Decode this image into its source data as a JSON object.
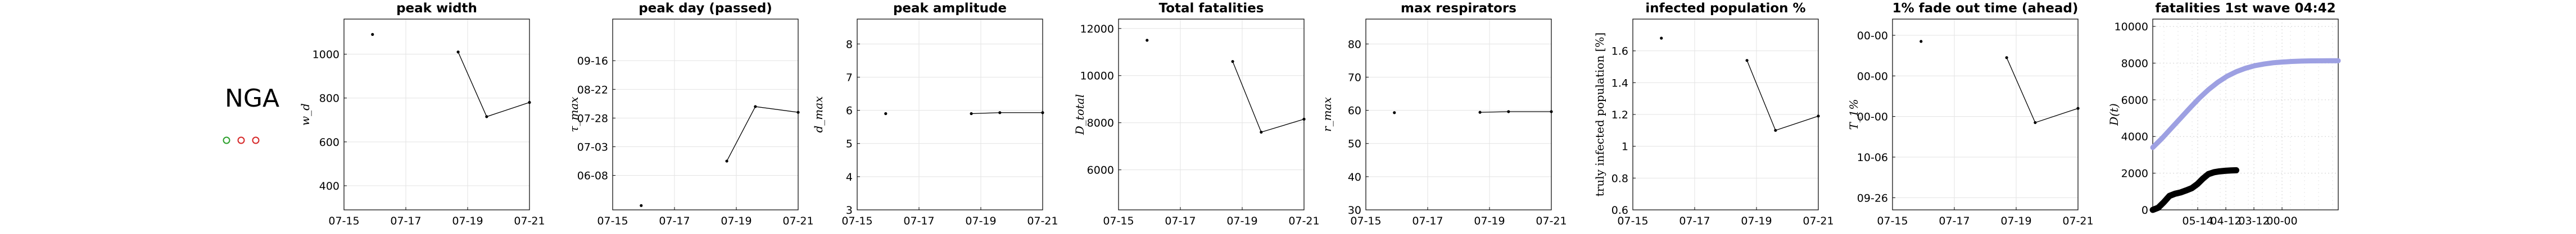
{
  "country": {
    "label": "NGA",
    "indicators": [
      {
        "color": "#2ca02c"
      },
      {
        "color": "#d62728"
      },
      {
        "color": "#d62728"
      }
    ]
  },
  "chart_data": [
    {
      "type": "line",
      "title": "peak width",
      "ylabel": "w_d",
      "xticks": [
        "07-15",
        "07-17",
        "07-19",
        "07-21"
      ],
      "xlim": [
        0,
        6.5
      ],
      "yticks": [
        "400",
        "600",
        "800",
        "1000"
      ],
      "ylim": [
        290,
        1160
      ],
      "grid": true,
      "points": [
        [
          1,
          1090
        ],
        [
          4,
          1010
        ],
        [
          5,
          715
        ],
        [
          6.5,
          780
        ]
      ],
      "line_from": 1
    },
    {
      "type": "line",
      "title": "peak day (passed)",
      "ylabel": "τ_max",
      "xticks": [
        "07-15",
        "07-17",
        "07-19",
        "07-21"
      ],
      "xlim": [
        0,
        6.5
      ],
      "yticks": [
        "06-08",
        "07-03",
        "07-28",
        "08-22",
        "09-16"
      ],
      "ylim": [
        -1.2,
        5.45
      ],
      "grid": true,
      "points": [
        [
          1,
          -1.05
        ],
        [
          4,
          0.5
        ],
        [
          5,
          2.4
        ],
        [
          6.5,
          2.2
        ]
      ],
      "line_from": 1
    },
    {
      "type": "line",
      "title": "peak amplitude",
      "ylabel": "d_max",
      "xticks": [
        "07-15",
        "07-17",
        "07-19",
        "07-21"
      ],
      "xlim": [
        0,
        6.5
      ],
      "yticks": [
        "3",
        "4",
        "5",
        "6",
        "7",
        "8"
      ],
      "ylim": [
        3,
        8.75
      ],
      "grid": true,
      "points": [
        [
          1,
          5.9
        ],
        [
          4,
          5.9
        ],
        [
          5,
          5.93
        ],
        [
          6.5,
          5.93
        ]
      ],
      "line_from": 1
    },
    {
      "type": "line",
      "title": "Total fatalities",
      "ylabel": "D_total",
      "xticks": [
        "07-15",
        "07-17",
        "07-19",
        "07-21"
      ],
      "xlim": [
        0,
        6.5
      ],
      "yticks": [
        "6000",
        "8000",
        "10000",
        "12000"
      ],
      "ylim": [
        4300,
        12400
      ],
      "grid": true,
      "points": [
        [
          1,
          11500
        ],
        [
          4,
          10600
        ],
        [
          5,
          7600
        ],
        [
          6.5,
          8150
        ]
      ],
      "line_from": 1
    },
    {
      "type": "line",
      "title": "max respirators",
      "ylabel": "r_max",
      "xticks": [
        "07-15",
        "07-17",
        "07-19",
        "07-21"
      ],
      "xlim": [
        0,
        6.5
      ],
      "yticks": [
        "30",
        "40",
        "50",
        "60",
        "70",
        "80"
      ],
      "ylim": [
        30,
        87.5
      ],
      "grid": true,
      "points": [
        [
          1,
          59.3
        ],
        [
          4,
          59.4
        ],
        [
          5,
          59.6
        ],
        [
          6.5,
          59.6
        ]
      ],
      "line_from": 1
    },
    {
      "type": "line",
      "title": "infected population %",
      "ylabel": "truly infected population [%]",
      "xticks": [
        "07-15",
        "07-17",
        "07-19",
        "07-21"
      ],
      "xlim": [
        0,
        6.5
      ],
      "yticks": [
        "0.6",
        "0.8",
        "1",
        "1.2",
        "1.4",
        "1.6"
      ],
      "ylim": [
        0.6,
        1.8
      ],
      "grid": true,
      "points": [
        [
          1,
          1.68
        ],
        [
          4,
          1.54
        ],
        [
          5,
          1.1
        ],
        [
          6.5,
          1.19
        ]
      ],
      "line_from": 1
    },
    {
      "type": "line",
      "title": "1% fade out time (ahead)",
      "ylabel": "T_1%",
      "xticks": [
        "07-15",
        "07-17",
        "07-19",
        "07-21"
      ],
      "xlim": [
        0,
        6.5
      ],
      "yticks": [
        "09-26",
        "10-06",
        "00-00",
        "00-00",
        "00-00"
      ],
      "ylim": [
        -0.3,
        4.4
      ],
      "grid": true,
      "points": [
        [
          1,
          3.85
        ],
        [
          4,
          3.45
        ],
        [
          5,
          1.85
        ],
        [
          6.5,
          2.2
        ]
      ],
      "line_from": 1
    },
    {
      "type": "line",
      "title": "fatalities 1st wave 04:42",
      "ylabel": "D(t)",
      "xticks": [
        "05-14",
        "04-12",
        "03-12",
        "00-00"
      ],
      "xlim": [
        0,
        10
      ],
      "yticks": [
        "0",
        "2000",
        "4000",
        "6000",
        "8000",
        "10000"
      ],
      "ylim": [
        0,
        10400
      ],
      "grid": true,
      "series": [
        {
          "style": "projection",
          "color": "#9da0e2",
          "x": [
            0,
            0.5,
            1,
            1.5,
            2,
            2.5,
            3,
            3.5,
            4,
            4.5,
            5,
            5.5,
            6,
            6.5,
            7,
            7.5,
            8,
            8.5,
            9,
            9.5,
            10
          ],
          "y": [
            3400,
            3900,
            4450,
            5000,
            5550,
            6080,
            6550,
            6950,
            7280,
            7530,
            7720,
            7860,
            7950,
            8020,
            8060,
            8090,
            8110,
            8120,
            8125,
            8130,
            8130
          ]
        },
        {
          "style": "observed",
          "color": "#000000",
          "x": [
            0,
            0.3,
            0.6,
            0.9,
            1.2,
            1.5,
            1.8,
            2.1,
            2.4,
            2.7,
            3.0,
            3.3,
            3.6,
            3.9,
            4.2,
            4.5
          ],
          "y": [
            0,
            120,
            420,
            760,
            880,
            950,
            1060,
            1180,
            1400,
            1700,
            1950,
            2050,
            2100,
            2130,
            2150,
            2160
          ]
        }
      ]
    }
  ]
}
